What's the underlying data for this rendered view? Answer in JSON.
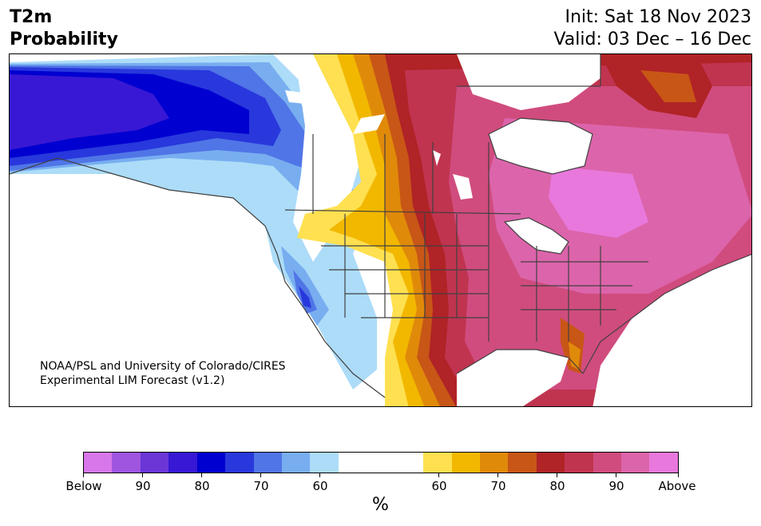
{
  "header": {
    "variable": "T2m",
    "product": "Probability",
    "init": "Init: Sat 18 Nov 2023",
    "valid": "Valid: 03 Dec – 16 Dec"
  },
  "credit": {
    "line1": "NOAA/PSL and University of Colorado/CIRES",
    "line2": "Experimental LIM Forecast (v1.2)"
  },
  "colorbar": {
    "unit": "%",
    "below_colors": [
      "#d877ea",
      "#a055e0",
      "#6a36d6",
      "#3818d4",
      "#0000d0",
      "#2838dc",
      "#5075e6",
      "#78aef0",
      "#acdcf8"
    ],
    "neutral_color": "#ffffff",
    "above_colors": [
      "#ffe050",
      "#f2b800",
      "#e08a0a",
      "#c85616",
      "#b02326",
      "#c03450",
      "#d04c7e",
      "#dc64aa",
      "#e878dc"
    ],
    "tick_labels": [
      "Below",
      "90",
      "80",
      "70",
      "60",
      "60",
      "70",
      "80",
      "90",
      "Above"
    ]
  },
  "map": {
    "legend_colors": {
      "ocean": "#ffffff",
      "border": "#404040"
    }
  }
}
